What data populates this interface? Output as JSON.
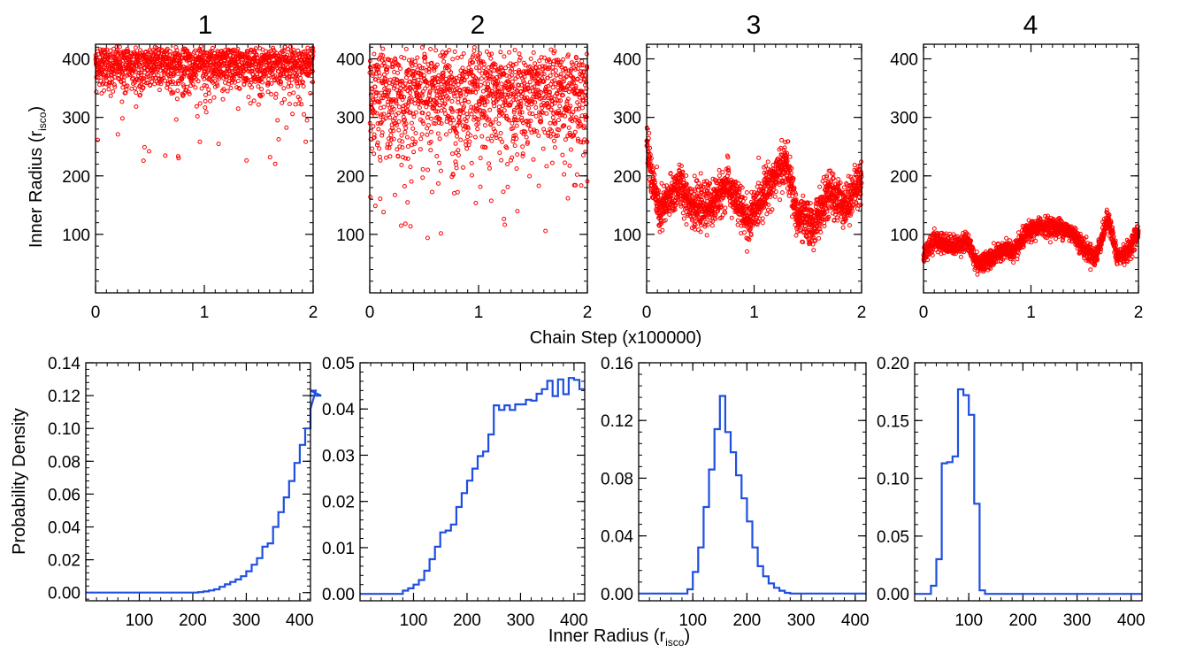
{
  "figure": {
    "panel_titles": [
      "1",
      "2",
      "3",
      "4"
    ],
    "top_ylabel": "Inner Radius (r",
    "top_ylabel_sub": "isco",
    "top_ylabel_close": ")",
    "top_xlabel": "Chain Step (x100000)",
    "bottom_ylabel": "Probability Density",
    "bottom_xlabel": "Inner Radius (r",
    "bottom_xlabel_sub": "isco",
    "bottom_xlabel_close": ")"
  },
  "colors": {
    "trace": "#ff0000",
    "histogram": "#1f4fe0",
    "axes": "#000000"
  },
  "chart_data": [
    {
      "type": "scatter",
      "panel": "1",
      "xlim": [
        0,
        2
      ],
      "ylim": [
        0,
        425
      ],
      "xticks": [
        0,
        1,
        2
      ],
      "yticks": [
        100,
        200,
        300,
        400
      ],
      "trace": {
        "mean": 385,
        "spread": 30,
        "min": 220,
        "max": 422,
        "points": 1400,
        "drift": 0
      }
    },
    {
      "type": "scatter",
      "panel": "2",
      "xlim": [
        0,
        2
      ],
      "ylim": [
        0,
        425
      ],
      "xticks": [
        0,
        1,
        2
      ],
      "yticks": [
        100,
        200,
        300,
        400
      ],
      "trace": {
        "mean": 320,
        "spread": 70,
        "min": 90,
        "max": 422,
        "points": 1400,
        "drift": 0
      }
    },
    {
      "type": "scatter",
      "panel": "3",
      "xlim": [
        0,
        2
      ],
      "ylim": [
        0,
        425
      ],
      "xticks": [
        0,
        1,
        2
      ],
      "yticks": [
        100,
        200,
        300,
        400
      ],
      "trace": {
        "levels": [
          [
            0.0,
            255
          ],
          [
            0.05,
            195
          ],
          [
            0.12,
            135
          ],
          [
            0.3,
            185
          ],
          [
            0.45,
            145
          ],
          [
            0.6,
            150
          ],
          [
            0.75,
            185
          ],
          [
            0.95,
            120
          ],
          [
            1.1,
            175
          ],
          [
            1.3,
            225
          ],
          [
            1.4,
            130
          ],
          [
            1.55,
            115
          ],
          [
            1.7,
            170
          ],
          [
            1.85,
            150
          ],
          [
            2.0,
            195
          ]
        ],
        "noise": 18,
        "points": 1800
      }
    },
    {
      "type": "scatter",
      "panel": "4",
      "xlim": [
        0,
        2
      ],
      "ylim": [
        0,
        425
      ],
      "xticks": [
        0,
        1,
        2
      ],
      "yticks": [
        100,
        200,
        300,
        400
      ],
      "trace": {
        "levels": [
          [
            0.0,
            65
          ],
          [
            0.1,
            90
          ],
          [
            0.3,
            80
          ],
          [
            0.4,
            90
          ],
          [
            0.5,
            50
          ],
          [
            0.65,
            60
          ],
          [
            0.75,
            75
          ],
          [
            0.85,
            70
          ],
          [
            0.95,
            100
          ],
          [
            1.1,
            115
          ],
          [
            1.3,
            110
          ],
          [
            1.4,
            100
          ],
          [
            1.5,
            75
          ],
          [
            1.6,
            60
          ],
          [
            1.72,
            130
          ],
          [
            1.8,
            60
          ],
          [
            1.9,
            70
          ],
          [
            2.0,
            105
          ]
        ],
        "noise": 8,
        "points": 1800
      }
    },
    {
      "type": "histogram",
      "panel": "1",
      "xlim": [
        0,
        420
      ],
      "ylim": [
        -0.005,
        0.14
      ],
      "xticks": [
        100,
        200,
        300,
        400
      ],
      "yticks": [
        0.0,
        0.02,
        0.04,
        0.06,
        0.08,
        0.1,
        0.12,
        0.14
      ],
      "ytick_labels": [
        "0.00",
        "0.02",
        "0.04",
        "0.06",
        "0.08",
        "0.10",
        "0.12",
        "0.14"
      ],
      "bin_width": 10,
      "bin_start": 0,
      "values": [
        0,
        0,
        0,
        0,
        0,
        0,
        0,
        0,
        0,
        0,
        0,
        0,
        0,
        0,
        0,
        0,
        0,
        0,
        0,
        0,
        0,
        0.0003,
        0.0007,
        0.0013,
        0.002,
        0.0035,
        0.005,
        0.0065,
        0.008,
        0.01,
        0.013,
        0.017,
        0.021,
        0.028,
        0.03,
        0.04,
        0.049,
        0.058,
        0.068,
        0.079,
        0.09,
        0.1,
        0.112,
        0.123,
        0.12
      ]
    },
    {
      "type": "histogram",
      "panel": "2",
      "xlim": [
        0,
        420
      ],
      "ylim": [
        -0.0015,
        0.05
      ],
      "xticks": [
        100,
        200,
        300,
        400
      ],
      "yticks": [
        0.0,
        0.01,
        0.02,
        0.03,
        0.04,
        0.05
      ],
      "ytick_labels": [
        "0.00",
        "0.01",
        "0.02",
        "0.03",
        "0.04",
        "0.05"
      ],
      "bin_width": 10,
      "bin_start": 0,
      "values": [
        0,
        0,
        0,
        0,
        0,
        0,
        0,
        0,
        0.0007,
        0.0012,
        0.002,
        0.003,
        0.005,
        0.0075,
        0.0102,
        0.0133,
        0.0137,
        0.015,
        0.0188,
        0.0218,
        0.0245,
        0.0271,
        0.0298,
        0.0308,
        0.0345,
        0.0408,
        0.0398,
        0.0408,
        0.0398,
        0.041,
        0.041,
        0.042,
        0.0418,
        0.0433,
        0.0443,
        0.0461,
        0.0428,
        0.0464,
        0.0432,
        0.0467,
        0.0463,
        0.0443
      ]
    },
    {
      "type": "histogram",
      "panel": "3",
      "xlim": [
        0,
        420
      ],
      "ylim": [
        -0.005,
        0.16
      ],
      "xticks": [
        100,
        200,
        300,
        400
      ],
      "yticks": [
        0.0,
        0.04,
        0.08,
        0.12,
        0.16
      ],
      "ytick_labels": [
        "0.00",
        "0.04",
        "0.08",
        "0.12",
        "0.16"
      ],
      "bin_width": 10,
      "bin_start": 0,
      "values": [
        0,
        0,
        0,
        0,
        0,
        0,
        0,
        0,
        0,
        0.003,
        0.015,
        0.032,
        0.06,
        0.086,
        0.114,
        0.137,
        0.112,
        0.098,
        0.082,
        0.066,
        0.05,
        0.032,
        0.019,
        0.012,
        0.007,
        0.004,
        0.002,
        0.0005,
        0,
        0,
        0,
        0,
        0,
        0,
        0,
        0,
        0,
        0,
        0,
        0,
        0,
        0
      ]
    },
    {
      "type": "histogram",
      "panel": "4",
      "xlim": [
        0,
        420
      ],
      "ylim": [
        -0.006,
        0.2
      ],
      "xticks": [
        100,
        200,
        300,
        400
      ],
      "yticks": [
        0.0,
        0.05,
        0.1,
        0.15,
        0.2
      ],
      "ytick_labels": [
        "0.00",
        "0.05",
        "0.10",
        "0.15",
        "0.20"
      ],
      "bin_width": 10,
      "bin_start": 0,
      "values": [
        0,
        0,
        0,
        0.007,
        0.03,
        0.113,
        0.114,
        0.119,
        0.177,
        0.172,
        0.155,
        0.078,
        0.003,
        0,
        0,
        0,
        0,
        0,
        0,
        0,
        0,
        0,
        0,
        0,
        0,
        0,
        0,
        0,
        0,
        0,
        0,
        0,
        0,
        0,
        0,
        0,
        0,
        0,
        0,
        0,
        0,
        0
      ]
    }
  ]
}
